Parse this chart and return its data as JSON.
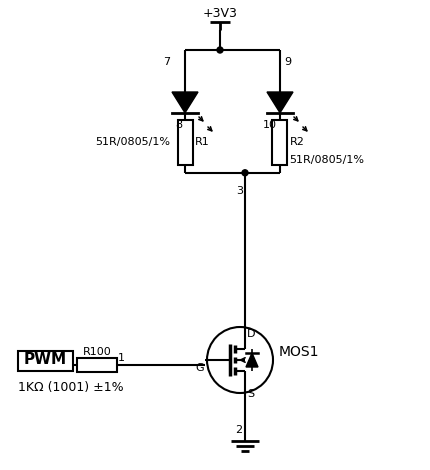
{
  "bg_color": "#ffffff",
  "vdd_label": "+3V3",
  "r1_label": "R1",
  "r2_label": "R2",
  "r1_spec": "51R/0805/1%",
  "r2_spec": "51R/0805/1%",
  "pwm_label": "PWM",
  "r100_label": "R100",
  "r100_spec": "1KΩ (1001) ±1%",
  "mos_label": "MOS1",
  "pin7": "7",
  "pin8": "8",
  "pin9": "9",
  "pin10": "10",
  "pin1": "1",
  "pin2": "2",
  "pin3": "3",
  "pin_g": "G",
  "pin_d": "D",
  "pin_s": "S"
}
